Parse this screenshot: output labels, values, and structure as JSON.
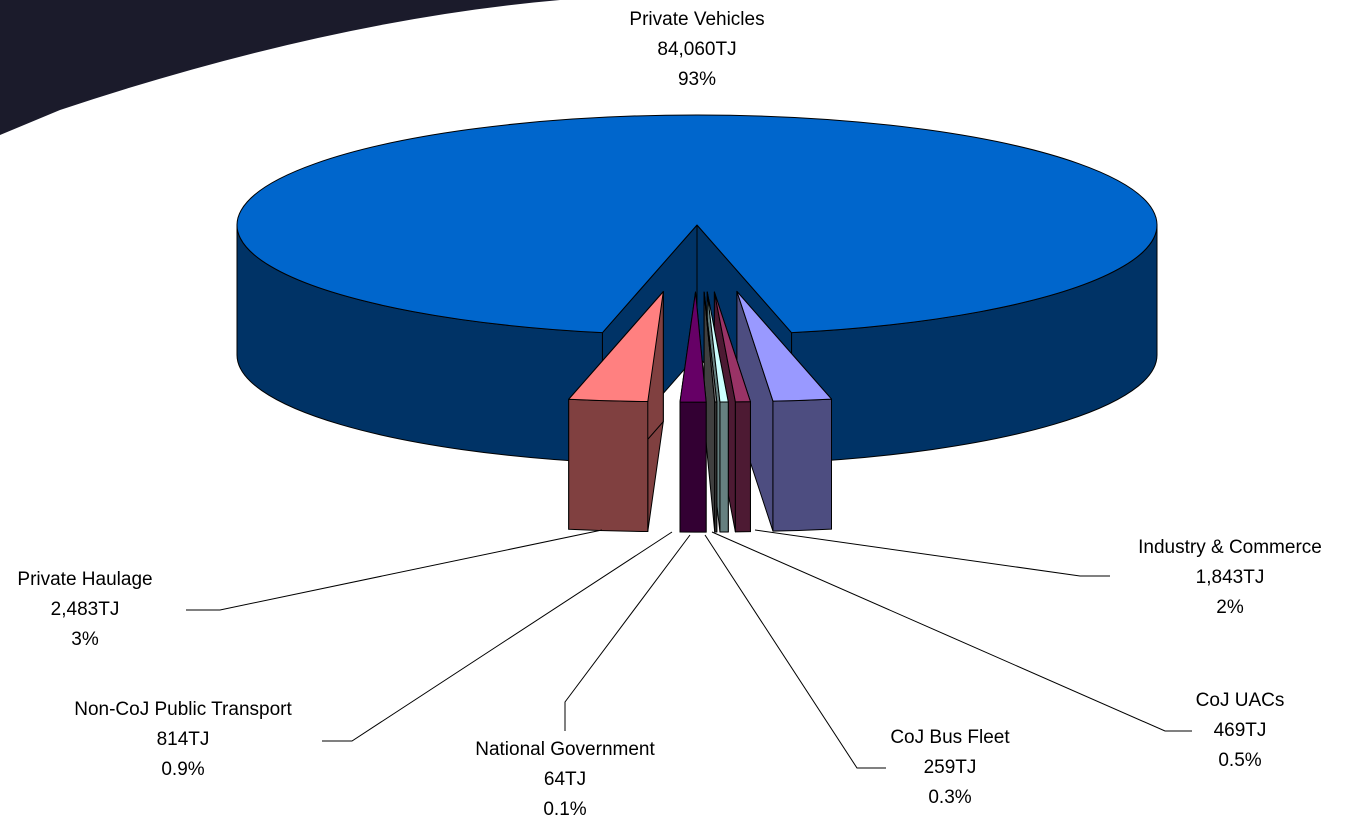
{
  "chart_data": {
    "type": "pie",
    "categories": [
      "Private Vehicles",
      "Industry & Commerce",
      "CoJ UACs",
      "CoJ Bus Fleet",
      "National Government",
      "Non-CoJ Public Transport",
      "Private Haulage"
    ],
    "values": [
      84060,
      1843,
      469,
      259,
      64,
      814,
      2483
    ],
    "value_labels": [
      "84,060TJ",
      "1,843TJ",
      "469TJ",
      "259TJ",
      "64TJ",
      "814TJ",
      "2,483TJ"
    ],
    "percent_labels": [
      "93%",
      "2%",
      "0.5%",
      "0.3%",
      "0.1%",
      "0.9%",
      "3%"
    ],
    "colors": [
      "#0066cc",
      "#9999ff",
      "#993366",
      "#ccffff",
      "#808080",
      "#660066",
      "#ff8080"
    ]
  }
}
